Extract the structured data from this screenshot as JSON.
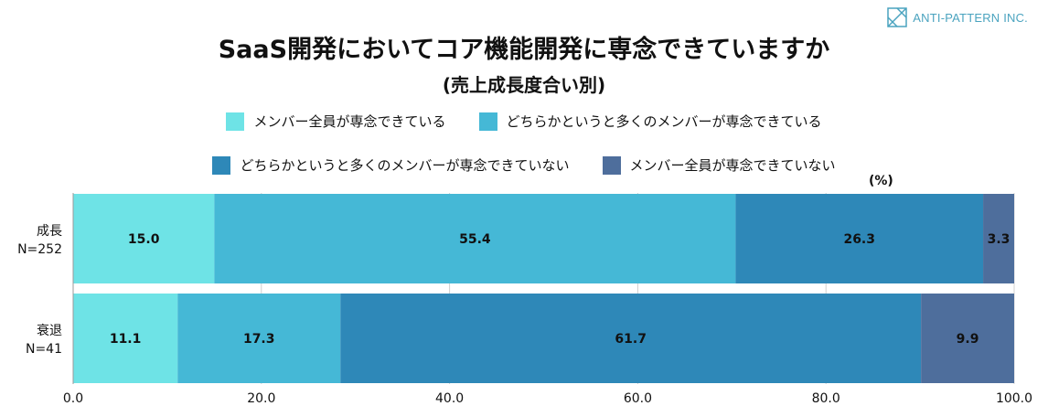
{
  "brand": {
    "name": "ANTI-PATTERN INC."
  },
  "chart_data": {
    "type": "bar",
    "orientation": "horizontal-stacked",
    "title": "SaaS開発においてコア機能開発に専念できていますか",
    "subtitle": "(売上成長度合い別)",
    "unit": "(%)",
    "categories": [
      {
        "name": "成長",
        "n": "N=252"
      },
      {
        "name": "衰退",
        "n": "N=41"
      }
    ],
    "series": [
      {
        "name": "メンバー全員が専念できている",
        "color": "#6ee3e6",
        "values": [
          15.0,
          11.1
        ]
      },
      {
        "name": "どちらかというと多くのメンバーが専念できている",
        "color": "#45b8d6",
        "values": [
          55.4,
          17.3
        ]
      },
      {
        "name": "どちらかというと多くのメンバーが専念できていない",
        "color": "#2e88b8",
        "values": [
          26.3,
          61.7
        ]
      },
      {
        "name": "メンバー全員が専念できていない",
        "color": "#4e6e9c",
        "values": [
          3.3,
          9.9
        ]
      }
    ],
    "xlim": [
      0,
      100
    ],
    "xticks": [
      "0.0",
      "20.0",
      "40.0",
      "60.0",
      "80.0",
      "100.0"
    ],
    "grid": true,
    "legend_position": "top"
  }
}
